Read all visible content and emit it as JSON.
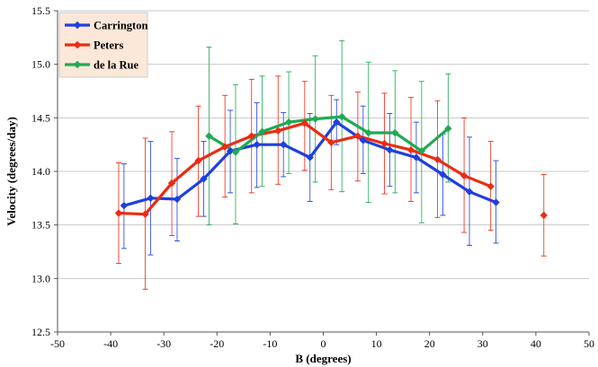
{
  "chart_data": {
    "type": "line",
    "title": "",
    "xlabel": "B (degrees)",
    "ylabel": "Velocity (degrees/day)",
    "xlim": [
      -50,
      50
    ],
    "ylim": [
      12.5,
      15.5
    ],
    "x_ticks": [
      -50,
      -40,
      -30,
      -20,
      -10,
      0,
      10,
      20,
      30,
      40,
      50
    ],
    "y_ticks": [
      12.5,
      13.0,
      13.5,
      14.0,
      14.5,
      15.0,
      15.5
    ],
    "x_tick_labels": [
      "-50",
      "-40",
      "-30",
      "-20",
      "-10",
      "0",
      "10",
      "20",
      "30",
      "40",
      "50"
    ],
    "y_tick_labels": [
      "12.5",
      "13.0",
      "13.5",
      "14.0",
      "14.5",
      "15.0",
      "15.5"
    ],
    "grid": "horizontal",
    "legend_position": "top-left",
    "series": [
      {
        "name": "Carrington",
        "color": "#1f3fe0",
        "marker": "diamond",
        "points": [
          {
            "x": -37.5,
            "y": 13.68,
            "lo": 13.28,
            "hi": 14.07
          },
          {
            "x": -32.5,
            "y": 13.75,
            "lo": 13.22,
            "hi": 14.28
          },
          {
            "x": -27.5,
            "y": 13.74,
            "lo": 13.35,
            "hi": 14.12
          },
          {
            "x": -22.5,
            "y": 13.93,
            "lo": 13.58,
            "hi": 14.28
          },
          {
            "x": -17.5,
            "y": 14.19,
            "lo": 13.8,
            "hi": 14.57
          },
          {
            "x": -12.5,
            "y": 14.25,
            "lo": 13.85,
            "hi": 14.64
          },
          {
            "x": -7.5,
            "y": 14.25,
            "lo": 13.95,
            "hi": 14.55
          },
          {
            "x": -2.5,
            "y": 14.13,
            "lo": 13.72,
            "hi": 14.54
          },
          {
            "x": 2.5,
            "y": 14.46,
            "lo": 14.25,
            "hi": 14.67
          },
          {
            "x": 7.5,
            "y": 14.29,
            "lo": 13.98,
            "hi": 14.61
          },
          {
            "x": 12.5,
            "y": 14.2,
            "lo": 13.86,
            "hi": 14.54
          },
          {
            "x": 17.5,
            "y": 14.13,
            "lo": 13.8,
            "hi": 14.46
          },
          {
            "x": 22.5,
            "y": 13.97,
            "lo": 13.59,
            "hi": 14.35
          },
          {
            "x": 27.5,
            "y": 13.81,
            "lo": 13.31,
            "hi": 14.32
          },
          {
            "x": 32.5,
            "y": 13.71,
            "lo": 13.33,
            "hi": 14.1
          }
        ]
      },
      {
        "name": "Peters",
        "color": "#ee2a12",
        "marker": "diamond",
        "points": [
          {
            "x": -38.5,
            "y": 13.61,
            "lo": 13.14,
            "hi": 14.08
          },
          {
            "x": -33.5,
            "y": 13.6,
            "lo": 12.9,
            "hi": 14.31
          },
          {
            "x": -28.5,
            "y": 13.89,
            "lo": 13.4,
            "hi": 14.37
          },
          {
            "x": -23.5,
            "y": 14.1,
            "lo": 13.58,
            "hi": 14.61
          },
          {
            "x": -18.5,
            "y": 14.23,
            "lo": 13.76,
            "hi": 14.71
          },
          {
            "x": -13.5,
            "y": 14.33,
            "lo": 13.8,
            "hi": 14.86
          },
          {
            "x": -8.5,
            "y": 14.38,
            "lo": 13.88,
            "hi": 14.89
          },
          {
            "x": -3.5,
            "y": 14.45,
            "lo": 14.01,
            "hi": 14.84
          },
          {
            "x": 1.5,
            "y": 14.27,
            "lo": 13.83,
            "hi": 14.71
          },
          {
            "x": 6.5,
            "y": 14.33,
            "lo": 13.91,
            "hi": 14.74
          },
          {
            "x": 11.5,
            "y": 14.26,
            "lo": 13.79,
            "hi": 14.73
          },
          {
            "x": 16.5,
            "y": 14.2,
            "lo": 13.72,
            "hi": 14.69
          },
          {
            "x": 21.5,
            "y": 14.11,
            "lo": 13.57,
            "hi": 14.66
          },
          {
            "x": 26.5,
            "y": 13.96,
            "lo": 13.43,
            "hi": 14.5
          },
          {
            "x": 31.5,
            "y": 13.86,
            "lo": 13.45,
            "hi": 14.28
          },
          {
            "x": 41.5,
            "y": 13.59,
            "lo": 13.21,
            "hi": 13.97
          }
        ]
      },
      {
        "name": "de la Rue",
        "color": "#1faa52",
        "marker": "diamond",
        "points": [
          {
            "x": -21.5,
            "y": 14.33,
            "lo": 13.5,
            "hi": 15.16
          },
          {
            "x": -16.5,
            "y": 14.18,
            "lo": 13.51,
            "hi": 14.81
          },
          {
            "x": -11.5,
            "y": 14.37,
            "lo": 13.86,
            "hi": 14.89
          },
          {
            "x": -6.5,
            "y": 14.46,
            "lo": 13.98,
            "hi": 14.93
          },
          {
            "x": -1.5,
            "y": 14.49,
            "lo": 13.9,
            "hi": 15.08
          },
          {
            "x": 3.5,
            "y": 14.51,
            "lo": 13.81,
            "hi": 15.22
          },
          {
            "x": 8.5,
            "y": 14.36,
            "lo": 13.71,
            "hi": 15.02
          },
          {
            "x": 13.5,
            "y": 14.36,
            "lo": 13.8,
            "hi": 14.94
          },
          {
            "x": 18.5,
            "y": 14.19,
            "lo": 13.52,
            "hi": 14.84
          },
          {
            "x": 23.5,
            "y": 14.4,
            "lo": 13.9,
            "hi": 14.91
          }
        ]
      }
    ]
  }
}
